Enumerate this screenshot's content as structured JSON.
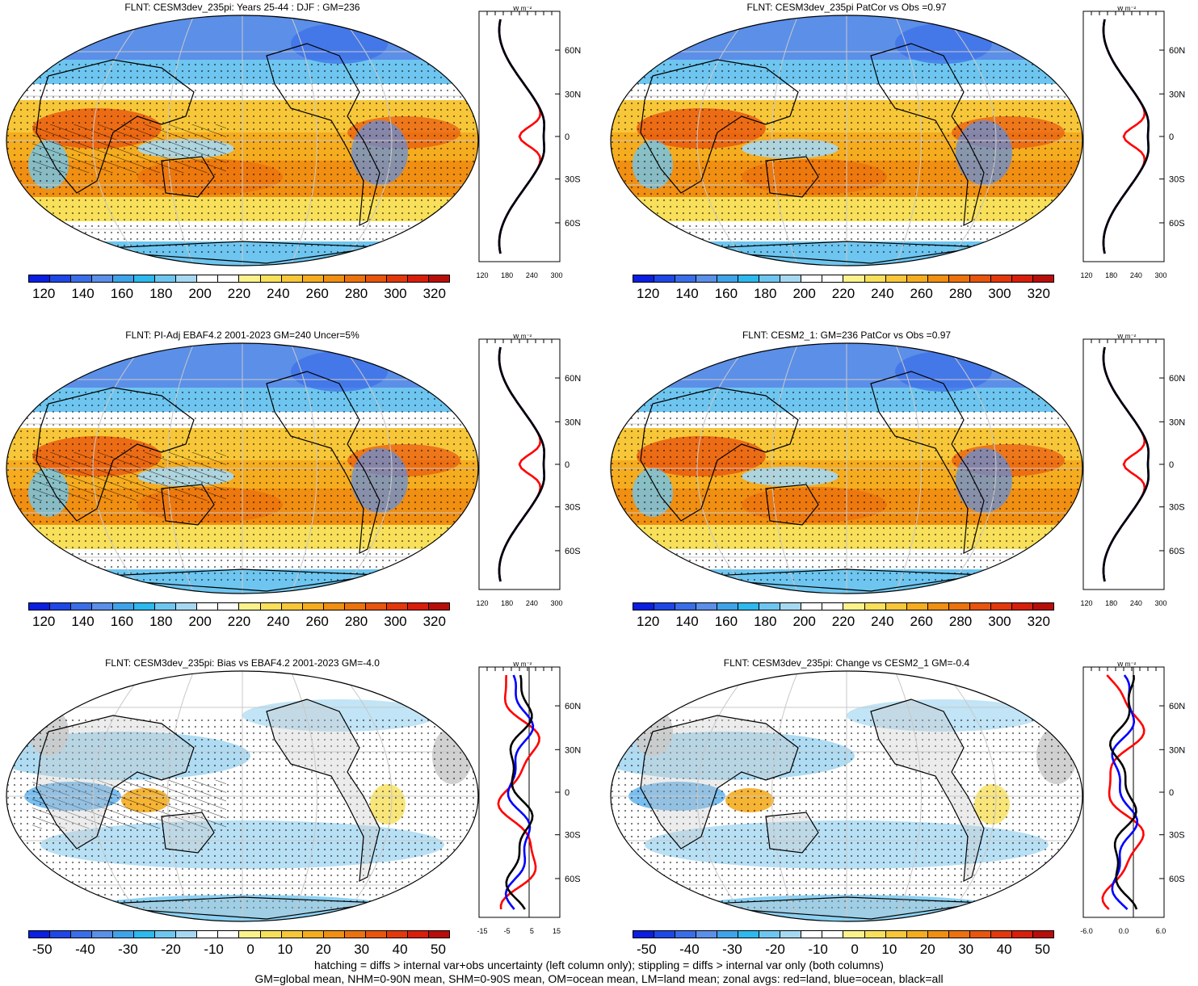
{
  "panels": [
    {
      "title": "FLNT: CESM3dev_235pi: Years 25-44 : DJF : GM=236",
      "scale": "abs",
      "cbar_labels": [
        "120",
        "140",
        "160",
        "180",
        "200",
        "220",
        "240",
        "260",
        "280",
        "300",
        "320"
      ],
      "zonal_xticks": [
        "120",
        "180",
        "240",
        "300"
      ],
      "zonal_units": "W m⁻²",
      "hatch": true
    },
    {
      "title": "FLNT: CESM3dev_235pi PatCor vs Obs =0.97",
      "scale": "abs",
      "cbar_labels": [
        "120",
        "140",
        "160",
        "180",
        "200",
        "220",
        "240",
        "260",
        "280",
        "300",
        "320"
      ],
      "zonal_xticks": [
        "120",
        "180",
        "240",
        "300"
      ],
      "zonal_units": "W m⁻²",
      "hatch": false
    },
    {
      "title": "FLNT: PI-Adj EBAF4.2 2001-2023 GM=240 Uncer=5%",
      "scale": "abs",
      "cbar_labels": [
        "120",
        "140",
        "160",
        "180",
        "200",
        "220",
        "240",
        "260",
        "280",
        "300",
        "320"
      ],
      "zonal_xticks": [
        "120",
        "180",
        "240",
        "300"
      ],
      "zonal_units": "W m⁻²",
      "hatch": true
    },
    {
      "title": "FLNT: CESM2_1: GM=236 PatCor vs Obs =0.97",
      "scale": "abs",
      "cbar_labels": [
        "120",
        "140",
        "160",
        "180",
        "200",
        "220",
        "240",
        "260",
        "280",
        "300",
        "320"
      ],
      "zonal_xticks": [
        "120",
        "180",
        "240",
        "300"
      ],
      "zonal_units": "W m⁻²",
      "hatch": false
    },
    {
      "title": "FLNT: CESM3dev_235pi: Bias vs EBAF4.2 2001-2023 GM=-4.0",
      "scale": "diff",
      "cbar_labels": [
        "-50",
        "-40",
        "-30",
        "-20",
        "-10",
        "0",
        "10",
        "20",
        "30",
        "40",
        "50"
      ],
      "zonal_xticks": [
        "-15",
        "-5",
        "5",
        "15"
      ],
      "zonal_units": "W m⁻²",
      "hatch": true
    },
    {
      "title": "FLNT: CESM3dev_235pi: Change vs CESM2_1 GM=-0.4",
      "scale": "diff",
      "cbar_labels": [
        "-50",
        "-40",
        "-30",
        "-20",
        "-10",
        "0",
        "10",
        "20",
        "30",
        "40",
        "50"
      ],
      "zonal_xticks": [
        "-6.0",
        "0.0",
        "6.0"
      ],
      "zonal_units": "W m⁻²",
      "hatch": false
    }
  ],
  "lat_labels": [
    "60N",
    "30N",
    "0",
    "30S",
    "60S"
  ],
  "colors": {
    "abs": [
      "#0a1fe0",
      "#1e47e6",
      "#3a6ee8",
      "#5b8fe8",
      "#3fa3ea",
      "#2db8ee",
      "#6ec6f0",
      "#a6d8f2",
      "#ffffff",
      "#ffffff",
      "#fbf28c",
      "#f8e05a",
      "#f7c739",
      "#f5ac1f",
      "#f08f12",
      "#ec720e",
      "#e8550d",
      "#e3380c",
      "#d81f0b",
      "#b80e0a"
    ],
    "diff": [
      "#0a1fe0",
      "#1e47e6",
      "#3a6ee8",
      "#5b8fe8",
      "#3fa3ea",
      "#2db8ee",
      "#6ec6f0",
      "#a6d8f2",
      "#ffffff",
      "#ffffff",
      "#fbf28c",
      "#f8e05a",
      "#f7c739",
      "#f5ac1f",
      "#f08f12",
      "#ec720e",
      "#e8550d",
      "#e3380c",
      "#d81f0b",
      "#b80e0a"
    ],
    "land_line": "#000000",
    "zonal_land": "#ff0000",
    "zonal_ocean": "#0000ff",
    "zonal_all": "#000000"
  },
  "footer": {
    "line1": "hatching = diffs > internal var+obs uncertainty (left column only); stippling = diffs > internal var only (both columns)",
    "line2": "GM=global mean, NHM=0-90N mean, SHM=0-90S mean, OM=ocean mean, LM=land mean; zonal avgs: red=land, blue=ocean, black=all"
  }
}
